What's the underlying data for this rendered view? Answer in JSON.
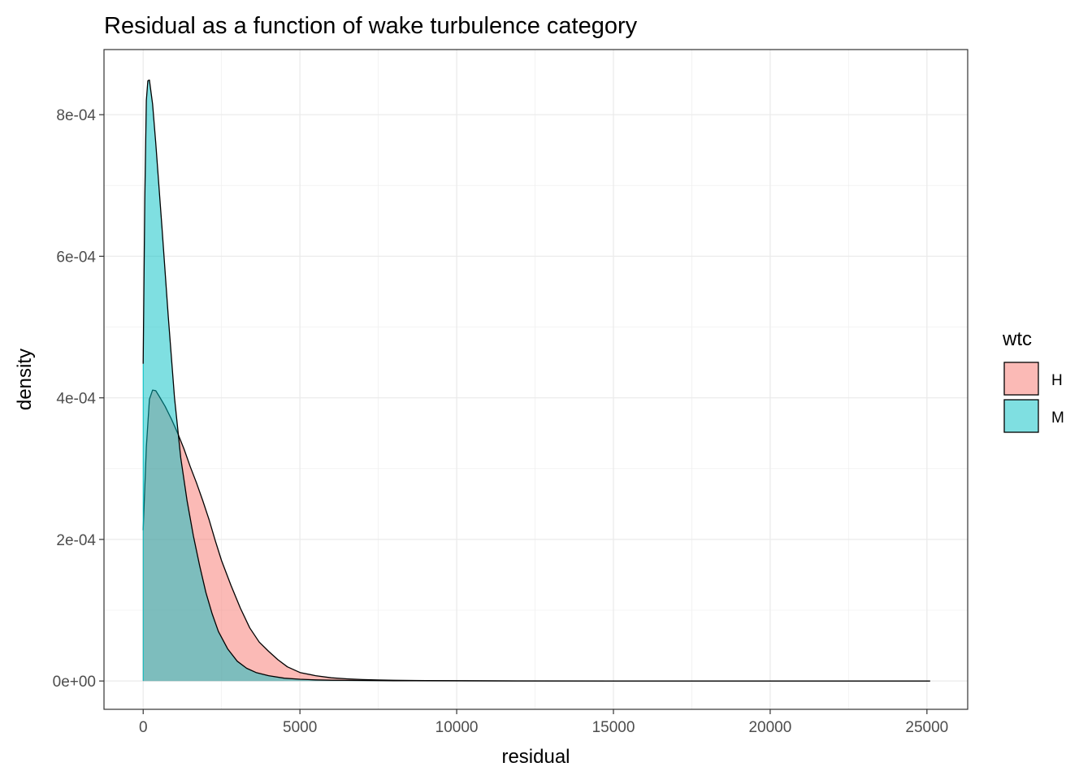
{
  "chart_data": {
    "type": "area",
    "subtype": "density",
    "title": "Residual as a function of wake turbulence category",
    "xlabel": "residual",
    "ylabel": "density",
    "xlim": [
      -1250,
      26300
    ],
    "ylim": [
      -4e-05,
      0.000892
    ],
    "x_ticks": [
      0,
      5000,
      10000,
      15000,
      20000,
      25000
    ],
    "x_tick_labels": [
      "0",
      "5000",
      "10000",
      "15000",
      "20000",
      "25000"
    ],
    "y_ticks": [
      0,
      0.0002,
      0.0004,
      0.0006,
      0.0008
    ],
    "y_tick_labels": [
      "0e+00",
      "2e-04",
      "4e-04",
      "6e-04",
      "8e-04"
    ],
    "grid": true,
    "legend": {
      "title": "wtc",
      "position": "right"
    },
    "series": [
      {
        "name": "H",
        "fill": "#F8766D",
        "opacity": 0.5,
        "x": [
          0,
          100,
          200,
          300,
          400,
          500,
          700,
          900,
          1100,
          1300,
          1500,
          1700,
          1900,
          2100,
          2300,
          2500,
          2800,
          3100,
          3400,
          3700,
          4000,
          4300,
          4600,
          5000,
          5500,
          6000,
          6500,
          7000,
          7500,
          8000,
          9000,
          10000,
          12000,
          15000,
          18000,
          21000,
          23000,
          25100
        ],
        "y": [
          0.000213,
          0.00033,
          0.000398,
          0.000411,
          0.00041,
          0.000403,
          0.000388,
          0.00037,
          0.00035,
          0.000328,
          0.000303,
          0.00028,
          0.000255,
          0.000228,
          0.000198,
          0.00017,
          0.000135,
          0.000103,
          7.5e-05,
          5.5e-05,
          4.2e-05,
          3e-05,
          2e-05,
          1.2e-05,
          7.5e-06,
          4.5e-06,
          3e-06,
          2e-06,
          1.4e-06,
          1e-06,
          6e-07,
          4e-07,
          2e-07,
          1e-07,
          8e-08,
          6e-08,
          5e-08,
          3e-08
        ]
      },
      {
        "name": "M",
        "fill": "#00BFC4",
        "opacity": 0.5,
        "x": [
          0,
          50,
          100,
          150,
          200,
          300,
          400,
          600,
          800,
          1000,
          1200,
          1400,
          1600,
          1800,
          2000,
          2200,
          2400,
          2700,
          3000,
          3300,
          3600,
          4000,
          4500,
          5000,
          5500,
          6000,
          7000,
          8000,
          10000,
          12000,
          15000,
          18000,
          21000,
          23000,
          25100
        ],
        "y": [
          0.000448,
          0.00068,
          0.00082,
          0.000848,
          0.000849,
          0.000815,
          0.00076,
          0.00064,
          0.000515,
          0.0004,
          0.000315,
          0.000255,
          0.000205,
          0.000163,
          0.000125,
          9.5e-05,
          7e-05,
          4.5e-05,
          2.8e-05,
          1.8e-05,
          1.2e-05,
          7.5e-06,
          4e-06,
          2.5e-06,
          1.6e-06,
          1.1e-06,
          7e-07,
          4e-07,
          2e-07,
          1e-07,
          6e-08,
          4e-08,
          3e-08,
          2e-08,
          1e-08
        ]
      }
    ]
  }
}
